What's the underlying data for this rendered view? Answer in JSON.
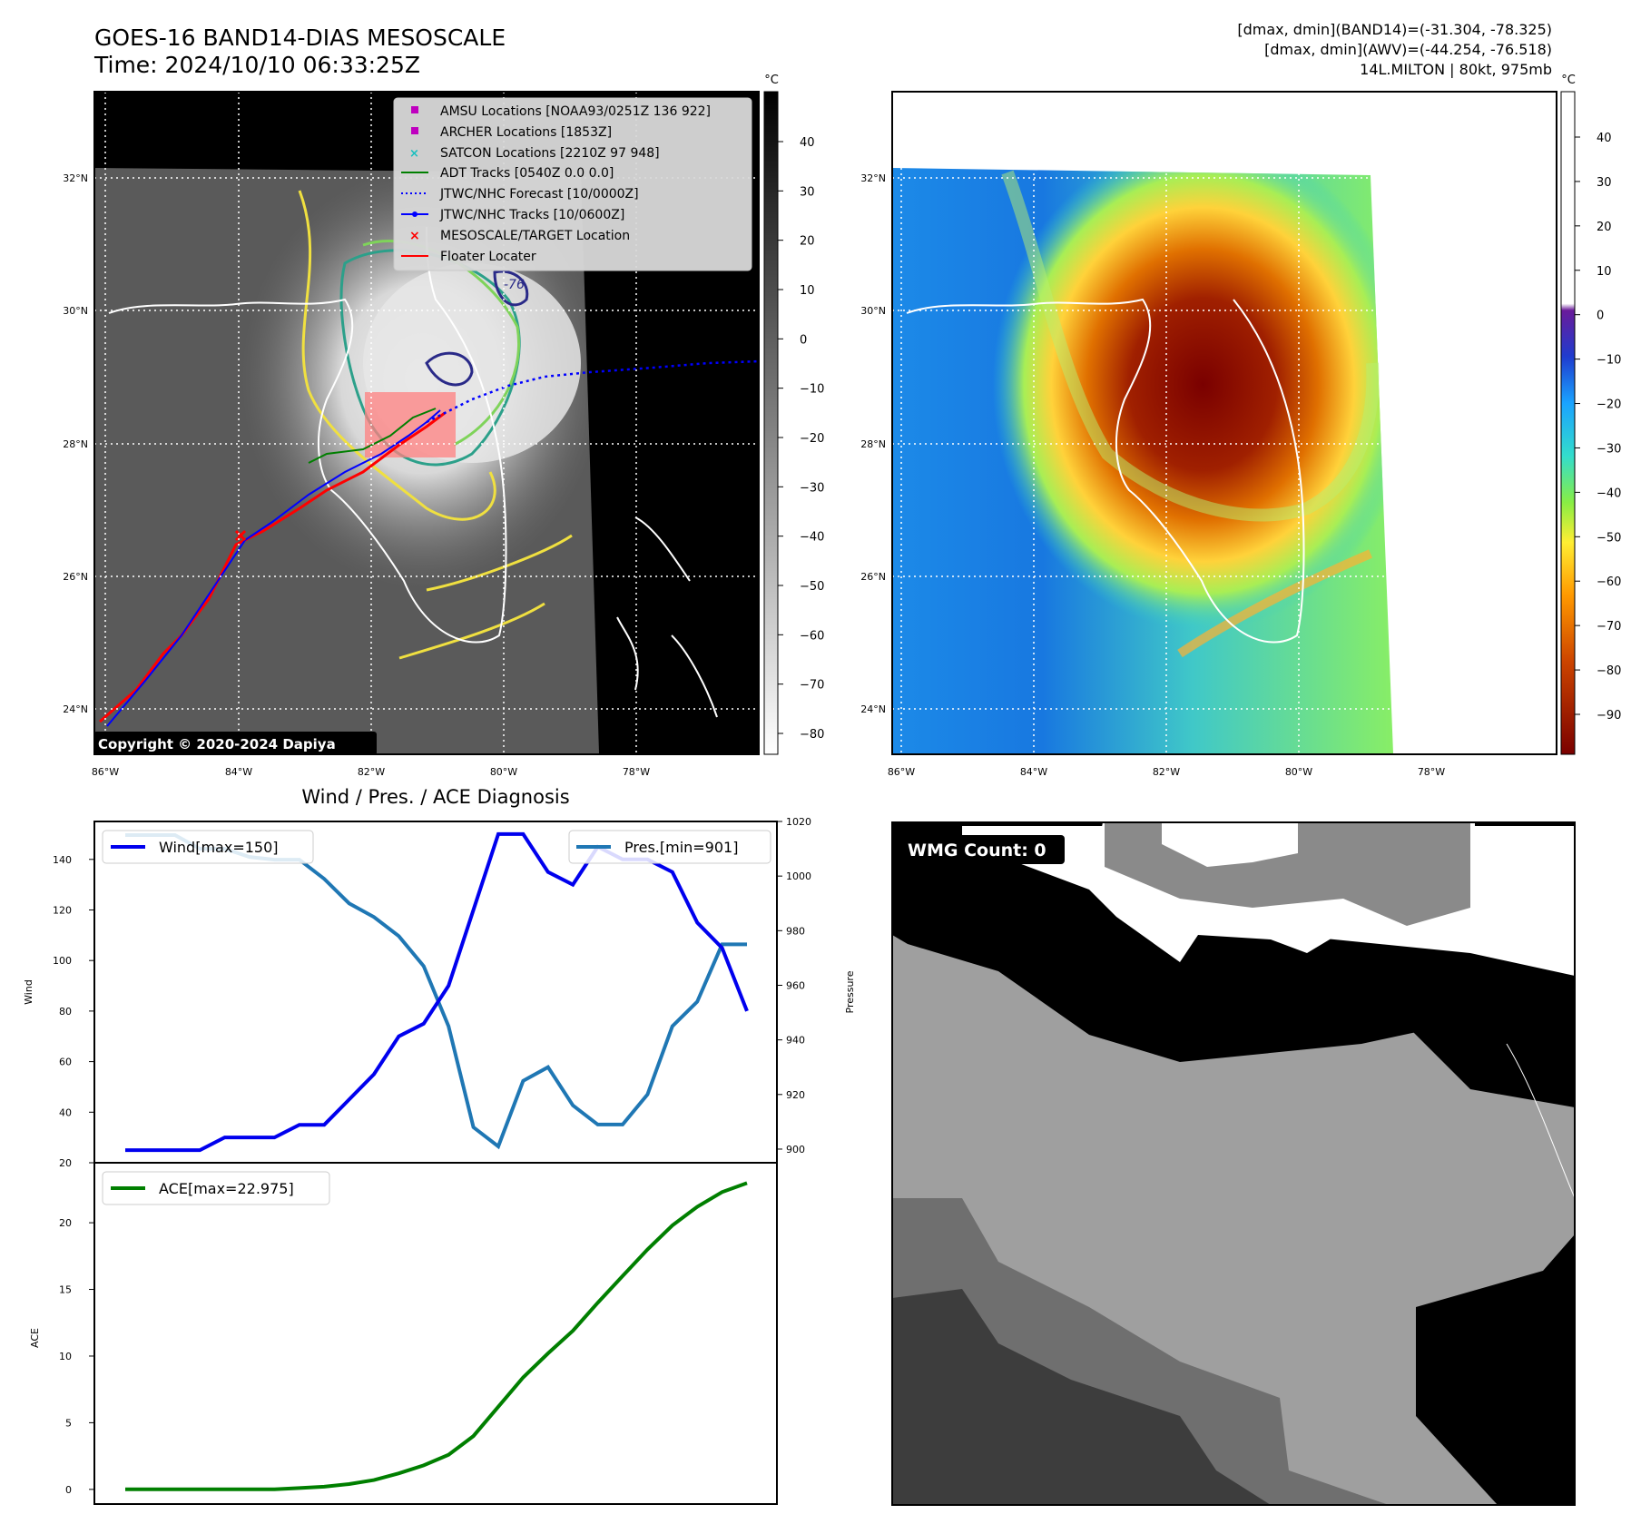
{
  "header": {
    "title_line1": "GOES-16 BAND14-DIAS MESOSCALE",
    "title_line2": "Time: 2024/10/10 06:33:25Z",
    "info_line1": "[dmax, dmin](BAND14)=(-31.304, -78.325)",
    "info_line2": "[dmax, dmin](AWV)=(-44.254, -76.518)",
    "info_line3": "14L.MILTON | 80kt, 975mb"
  },
  "colors": {
    "wind": "#0000ee",
    "pressure": "#1f77b4",
    "ace": "#007f00",
    "track_red": "#ff0000",
    "forecast_blue": "#0000ff",
    "satcon": "#17bfbf",
    "amsu": "#bf00bf"
  },
  "map_left": {
    "legend": [
      {
        "label": "AMSU Locations [NOAA93/0251Z 136 922]",
        "marker": "square",
        "color": "#bf00bf"
      },
      {
        "label": "ARCHER Locations [1853Z]",
        "marker": "square",
        "color": "#bf00bf"
      },
      {
        "label": "SATCON Locations [2210Z 97 948]",
        "marker": "x",
        "color": "#17bfbf"
      },
      {
        "label": "ADT Tracks [0540Z 0.0 0.0]",
        "marker": "line",
        "color": "#007f00"
      },
      {
        "label": "JTWC/NHC Forecast [10/0000Z]",
        "marker": "dotted",
        "color": "#0000ff"
      },
      {
        "label": "JTWC/NHC Tracks [10/0600Z]",
        "marker": "line-dot",
        "color": "#0000ff"
      },
      {
        "label": "MESOSCALE/TARGET Location",
        "marker": "x",
        "color": "#ff0000"
      },
      {
        "label": "Floater Locater",
        "marker": "line",
        "color": "#ff0000"
      }
    ],
    "copyright": "Copyright © 2020-2024 Dapiya",
    "contour_label": "-76",
    "colorbar_unit": "°C",
    "colorbar_ticks": [
      "40",
      "30",
      "20",
      "10",
      "0",
      "−10",
      "−20",
      "−30",
      "−40",
      "−50",
      "−60",
      "−70",
      "−80"
    ]
  },
  "map_right": {
    "colorbar_unit": "°C",
    "colorbar_ticks": [
      "40",
      "30",
      "20",
      "10",
      "0",
      "−10",
      "−20",
      "−30",
      "−40",
      "−50",
      "−60",
      "−70",
      "−80",
      "−90"
    ]
  },
  "map_axes": {
    "lon_labels": [
      "86°W",
      "84°W",
      "82°W",
      "80°W",
      "78°W"
    ],
    "lat_labels": [
      "32°N",
      "30°N",
      "28°N",
      "26°N",
      "24°N"
    ]
  },
  "diagnosis": {
    "title": "Wind / Pres. / ACE Diagnosis",
    "wind_legend": "Wind[max=150]",
    "pres_legend": "Pres.[min=901]",
    "ace_legend": "ACE[max=22.975]",
    "wind_ylabel": "Wind",
    "pres_ylabel": "Pressure",
    "ace_ylabel": "ACE"
  },
  "wmg": {
    "label": "WMG Count: 0"
  },
  "chart_data": [
    {
      "type": "line",
      "title": "Wind / Pres. / ACE Diagnosis",
      "xlabel": "",
      "x": [
        0,
        1,
        2,
        3,
        4,
        5,
        6,
        7,
        8,
        9,
        10,
        11,
        12,
        13,
        14,
        15,
        16,
        17,
        18,
        19,
        20,
        21,
        22,
        23,
        24,
        25
      ],
      "series": [
        {
          "name": "Wind[max=150]",
          "axis": "left",
          "values": [
            25,
            25,
            25,
            25,
            30,
            30,
            30,
            35,
            35,
            45,
            55,
            70,
            75,
            90,
            120,
            150,
            150,
            135,
            130,
            145,
            140,
            140,
            135,
            115,
            105,
            80
          ]
        },
        {
          "name": "Pres.[min=901]",
          "axis": "right",
          "values": [
            1015,
            1015,
            1015,
            1010,
            1010,
            1007,
            1006,
            1006,
            999,
            990,
            985,
            978,
            967,
            945,
            908,
            901,
            925,
            930,
            916,
            909,
            909,
            920,
            945,
            954,
            975,
            975
          ]
        }
      ],
      "ylabel": "Wind",
      "ylim": [
        20,
        155
      ],
      "yticks": [
        20,
        40,
        60,
        80,
        100,
        120,
        140
      ],
      "y2label": "Pressure",
      "y2lim": [
        895,
        1020
      ],
      "y2ticks": [
        900,
        920,
        940,
        960,
        980,
        1000,
        1020
      ]
    },
    {
      "type": "line",
      "title": "",
      "x": [
        0,
        1,
        2,
        3,
        4,
        5,
        6,
        7,
        8,
        9,
        10,
        11,
        12,
        13,
        14,
        15,
        16,
        17,
        18,
        19,
        20,
        21,
        22,
        23,
        24,
        25
      ],
      "series": [
        {
          "name": "ACE[max=22.975]",
          "values": [
            0.0,
            0.0,
            0.0,
            0.0,
            0.0,
            0.0,
            0.0,
            0.1,
            0.2,
            0.4,
            0.7,
            1.2,
            1.8,
            2.6,
            4.0,
            6.2,
            8.4,
            10.2,
            11.9,
            14.0,
            16.0,
            18.0,
            19.8,
            21.2,
            22.3,
            22.975
          ]
        }
      ],
      "ylabel": "ACE",
      "ylim": [
        -1.1,
        24.5
      ],
      "yticks": [
        0,
        5,
        10,
        15,
        20
      ]
    }
  ]
}
